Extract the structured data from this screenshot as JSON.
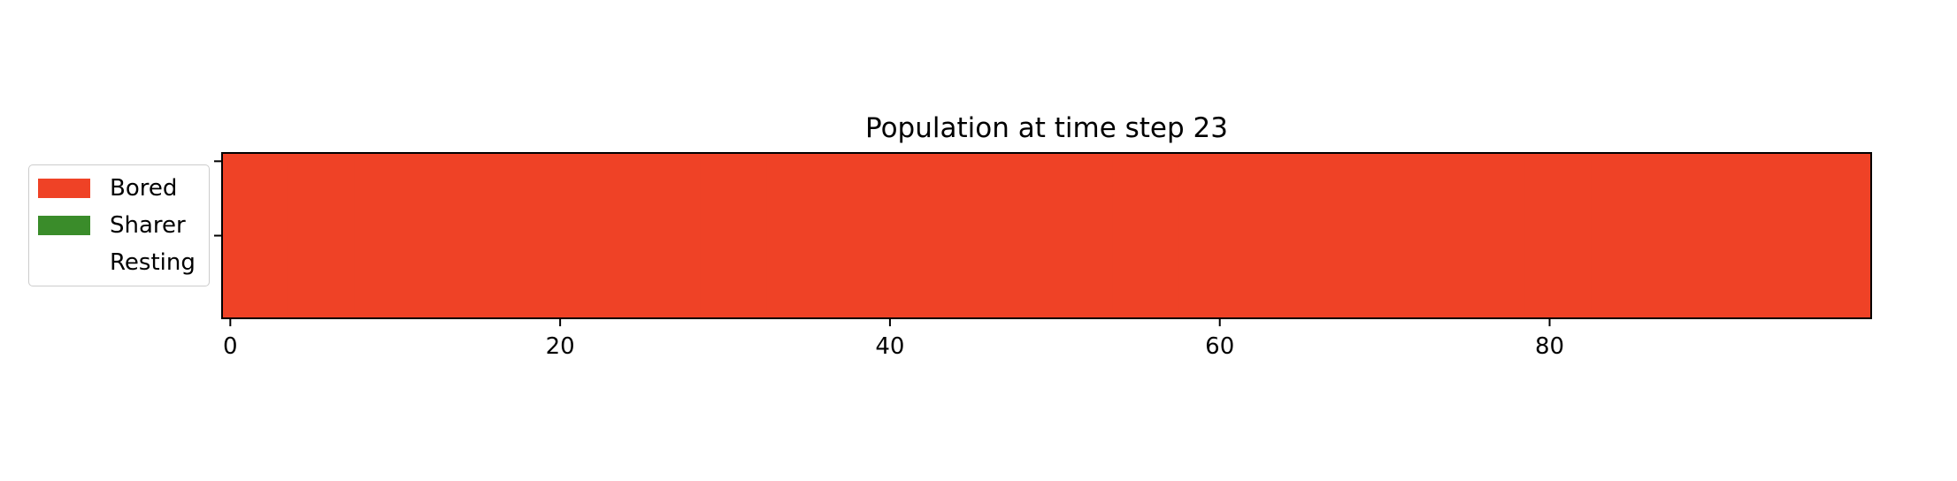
{
  "chart_data": {
    "type": "heatmap",
    "title": "Population at time step 23",
    "xlabel": "",
    "ylabel": "",
    "xlim": [
      -0.5,
      99.5
    ],
    "ylim": [
      0.5,
      -0.5
    ],
    "x_ticks": [
      0,
      20,
      40,
      60,
      80
    ],
    "y_ticks_labels": [
      "",
      ""
    ],
    "grid": false,
    "legend_position": "left",
    "categories": [
      "Bored",
      "Sharer",
      "Resting"
    ],
    "colors": {
      "Bored": "#ef4226",
      "Sharer": "#3a8c2a",
      "Resting": "#ffffff"
    },
    "cells": {
      "count": 100,
      "state": "Bored"
    }
  },
  "legend": {
    "items": [
      {
        "label": "Bored",
        "color": "#ef4226"
      },
      {
        "label": "Sharer",
        "color": "#3a8c2a"
      },
      {
        "label": "Resting",
        "color": "#ffffff"
      }
    ]
  }
}
